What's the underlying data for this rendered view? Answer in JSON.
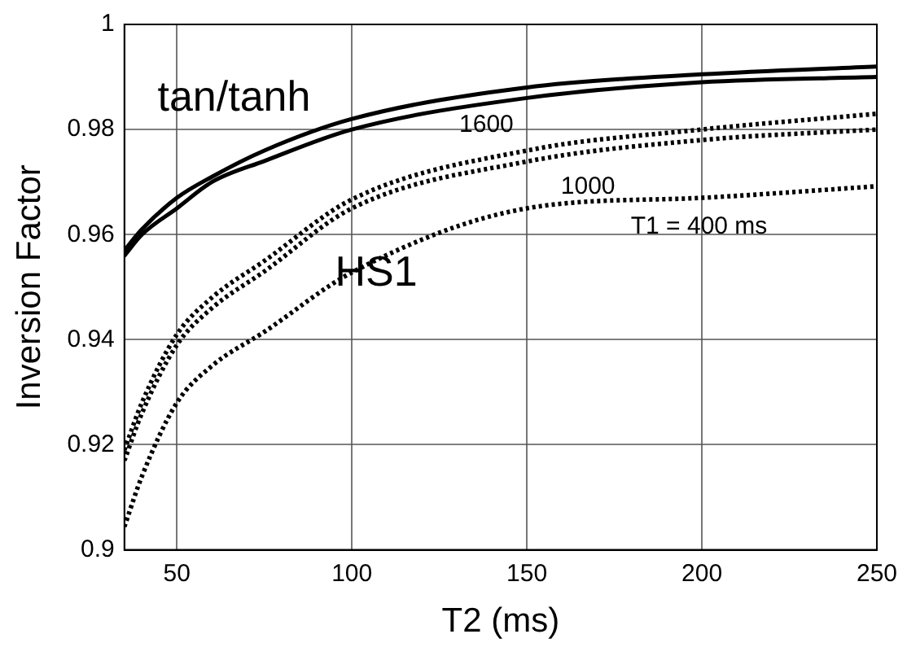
{
  "chart_data": {
    "type": "line",
    "xlabel": "T2 (ms)",
    "ylabel": "Inversion Factor",
    "xlim": [
      35,
      250
    ],
    "xticks": [
      50,
      100,
      150,
      200,
      250
    ],
    "ylim": [
      0.9,
      1
    ],
    "yticks": [
      0.9,
      0.92,
      0.94,
      0.96,
      0.98,
      1
    ],
    "grid": true,
    "marker": "none",
    "series": [
      {
        "color": "#000000",
        "line_style": "solid",
        "x": [
          35,
          40,
          50,
          60,
          75,
          100,
          150,
          200,
          250
        ],
        "values": [
          0.957,
          0.961,
          0.967,
          0.971,
          0.976,
          0.982,
          0.988,
          0.9905,
          0.992
        ]
      },
      {
        "color": "#000000",
        "line_style": "solid",
        "x": [
          35,
          40,
          50,
          60,
          75,
          100,
          150,
          200,
          250
        ],
        "values": [
          0.956,
          0.96,
          0.965,
          0.97,
          0.974,
          0.98,
          0.986,
          0.989,
          0.99
        ]
      },
      {
        "color": "#000000",
        "line_style": "dotted",
        "x": [
          35,
          40,
          50,
          60,
          75,
          100,
          150,
          200,
          250
        ],
        "values": [
          0.919,
          0.928,
          0.941,
          0.948,
          0.955,
          0.9667,
          0.976,
          0.98,
          0.983
        ]
      },
      {
        "color": "#000000",
        "line_style": "dotted",
        "x": [
          35,
          40,
          50,
          60,
          75,
          100,
          150,
          200,
          250
        ],
        "values": [
          0.917,
          0.926,
          0.939,
          0.946,
          0.953,
          0.965,
          0.9739,
          0.978,
          0.98
        ]
      },
      {
        "color": "#000000",
        "line_style": "dotted",
        "x": [
          35,
          40,
          50,
          60,
          75,
          100,
          150,
          200,
          250
        ],
        "values": [
          0.9044,
          0.914,
          0.928,
          0.935,
          0.9415,
          0.9528,
          0.965,
          0.967,
          0.9692
        ]
      }
    ],
    "annotations": [
      "tan/tanh",
      "HS1",
      "1600",
      "1000",
      "T1 = 400 ms"
    ]
  }
}
